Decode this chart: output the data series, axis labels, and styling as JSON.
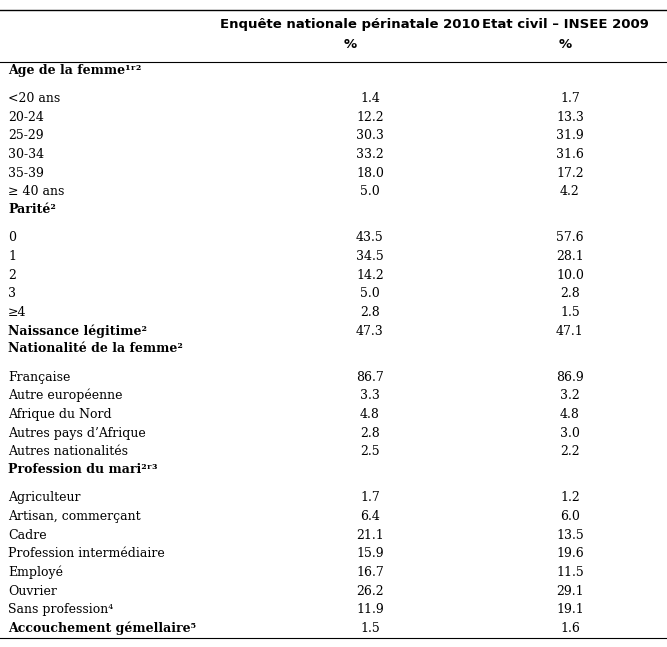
{
  "col1_header_line1": "Enquête nationale périnatale 2010",
  "col1_header_line2": "%",
  "col2_header_line1": "Etat civil – INSEE 2009",
  "col2_header_line2": "%",
  "rows": [
    {
      "label": "Age de la femme¹ʳ²",
      "val1": "",
      "val2": "",
      "bold": true,
      "is_section": true
    },
    {
      "label": "<20 ans",
      "val1": "1.4",
      "val2": "1.7",
      "bold": false,
      "is_section": false
    },
    {
      "label": "20-24",
      "val1": "12.2",
      "val2": "13.3",
      "bold": false,
      "is_section": false
    },
    {
      "label": "25-29",
      "val1": "30.3",
      "val2": "31.9",
      "bold": false,
      "is_section": false
    },
    {
      "label": "30-34",
      "val1": "33.2",
      "val2": "31.6",
      "bold": false,
      "is_section": false
    },
    {
      "label": "35-39",
      "val1": "18.0",
      "val2": "17.2",
      "bold": false,
      "is_section": false
    },
    {
      "label": "≥ 40 ans",
      "val1": "5.0",
      "val2": "4.2",
      "bold": false,
      "is_section": false
    },
    {
      "label": "Parité²",
      "val1": "",
      "val2": "",
      "bold": true,
      "is_section": true
    },
    {
      "label": "0",
      "val1": "43.5",
      "val2": "57.6",
      "bold": false,
      "is_section": false
    },
    {
      "label": "1",
      "val1": "34.5",
      "val2": "28.1",
      "bold": false,
      "is_section": false
    },
    {
      "label": "2",
      "val1": "14.2",
      "val2": "10.0",
      "bold": false,
      "is_section": false
    },
    {
      "label": "3",
      "val1": "5.0",
      "val2": "2.8",
      "bold": false,
      "is_section": false
    },
    {
      "label": "≥4",
      "val1": "2.8",
      "val2": "1.5",
      "bold": false,
      "is_section": false
    },
    {
      "label": "Naissance légitime²",
      "val1": "47.3",
      "val2": "47.1",
      "bold": true,
      "is_section": false
    },
    {
      "label": "Nationalité de la femme²",
      "val1": "",
      "val2": "",
      "bold": true,
      "is_section": true
    },
    {
      "label": "Française",
      "val1": "86.7",
      "val2": "86.9",
      "bold": false,
      "is_section": false
    },
    {
      "label": "Autre européenne",
      "val1": "3.3",
      "val2": "3.2",
      "bold": false,
      "is_section": false
    },
    {
      "label": "Afrique du Nord",
      "val1": "4.8",
      "val2": "4.8",
      "bold": false,
      "is_section": false
    },
    {
      "label": "Autres pays d’Afrique",
      "val1": "2.8",
      "val2": "3.0",
      "bold": false,
      "is_section": false
    },
    {
      "label": "Autres nationalités",
      "val1": "2.5",
      "val2": "2.2",
      "bold": false,
      "is_section": false
    },
    {
      "label": "Profession du mari²ʳ³",
      "val1": "",
      "val2": "",
      "bold": true,
      "is_section": true
    },
    {
      "label": "Agriculteur",
      "val1": "1.7",
      "val2": "1.2",
      "bold": false,
      "is_section": false
    },
    {
      "label": "Artisan, commerçant",
      "val1": "6.4",
      "val2": "6.0",
      "bold": false,
      "is_section": false
    },
    {
      "label": "Cadre",
      "val1": "21.1",
      "val2": "13.5",
      "bold": false,
      "is_section": false
    },
    {
      "label": "Profession intermédiaire",
      "val1": "15.9",
      "val2": "19.6",
      "bold": false,
      "is_section": false
    },
    {
      "label": "Employé",
      "val1": "16.7",
      "val2": "11.5",
      "bold": false,
      "is_section": false
    },
    {
      "label": "Ouvrier",
      "val1": "26.2",
      "val2": "29.1",
      "bold": false,
      "is_section": false
    },
    {
      "label": "Sans profession⁴",
      "val1": "11.9",
      "val2": "19.1",
      "bold": false,
      "is_section": false
    },
    {
      "label": "Accouchement gémellaire⁵",
      "val1": "1.5",
      "val2": "1.6",
      "bold": true,
      "is_section": false
    }
  ],
  "bg_color": "#ffffff",
  "font_size": 9.0,
  "header_font_size": 9.5
}
